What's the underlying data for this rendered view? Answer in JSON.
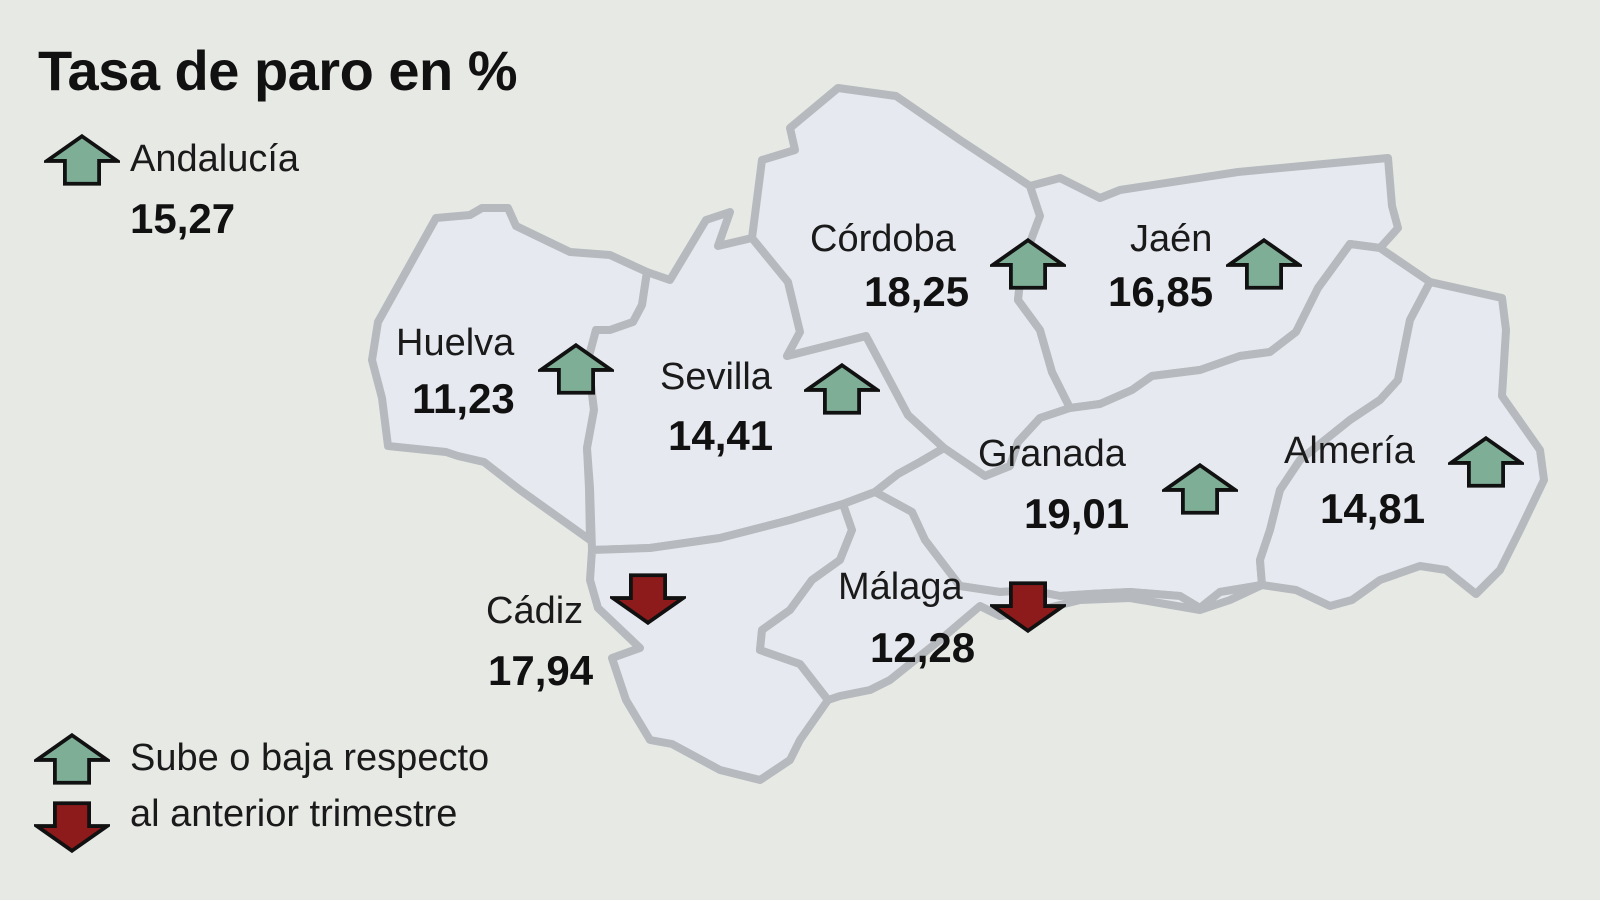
{
  "title": "Tasa de paro en %",
  "colors": {
    "background": "#e7e9e5",
    "province_fill": "#e6e9f0",
    "province_border": "#b6b9bd",
    "arrow_up": "#7fae97",
    "arrow_down": "#8e1b1b",
    "arrow_outline": "#111111"
  },
  "summary": {
    "name": "Andalucía",
    "value": "15,27",
    "trend_icon": "arrow-up-icon"
  },
  "provinces": {
    "huelva": {
      "name": "Huelva",
      "value": "11,23",
      "trend_icon": "arrow-up-icon"
    },
    "sevilla": {
      "name": "Sevilla",
      "value": "14,41",
      "trend_icon": "arrow-up-icon"
    },
    "cordoba": {
      "name": "Córdoba",
      "value": "18,25",
      "trend_icon": "arrow-up-icon"
    },
    "jaen": {
      "name": "Jaén",
      "value": "16,85",
      "trend_icon": "arrow-up-icon"
    },
    "granada": {
      "name": "Granada",
      "value": "19,01",
      "trend_icon": "arrow-up-icon"
    },
    "almeria": {
      "name": "Almería",
      "value": "14,81",
      "trend_icon": "arrow-up-icon"
    },
    "cadiz": {
      "name": "Cádiz",
      "value": "17,94",
      "trend_icon": "arrow-down-icon"
    },
    "malaga": {
      "name": "Málaga",
      "value": "12,28",
      "trend_icon": "arrow-down-icon"
    }
  },
  "legend": {
    "line1": "Sube o baja respecto",
    "line2": "al anterior trimestre"
  }
}
